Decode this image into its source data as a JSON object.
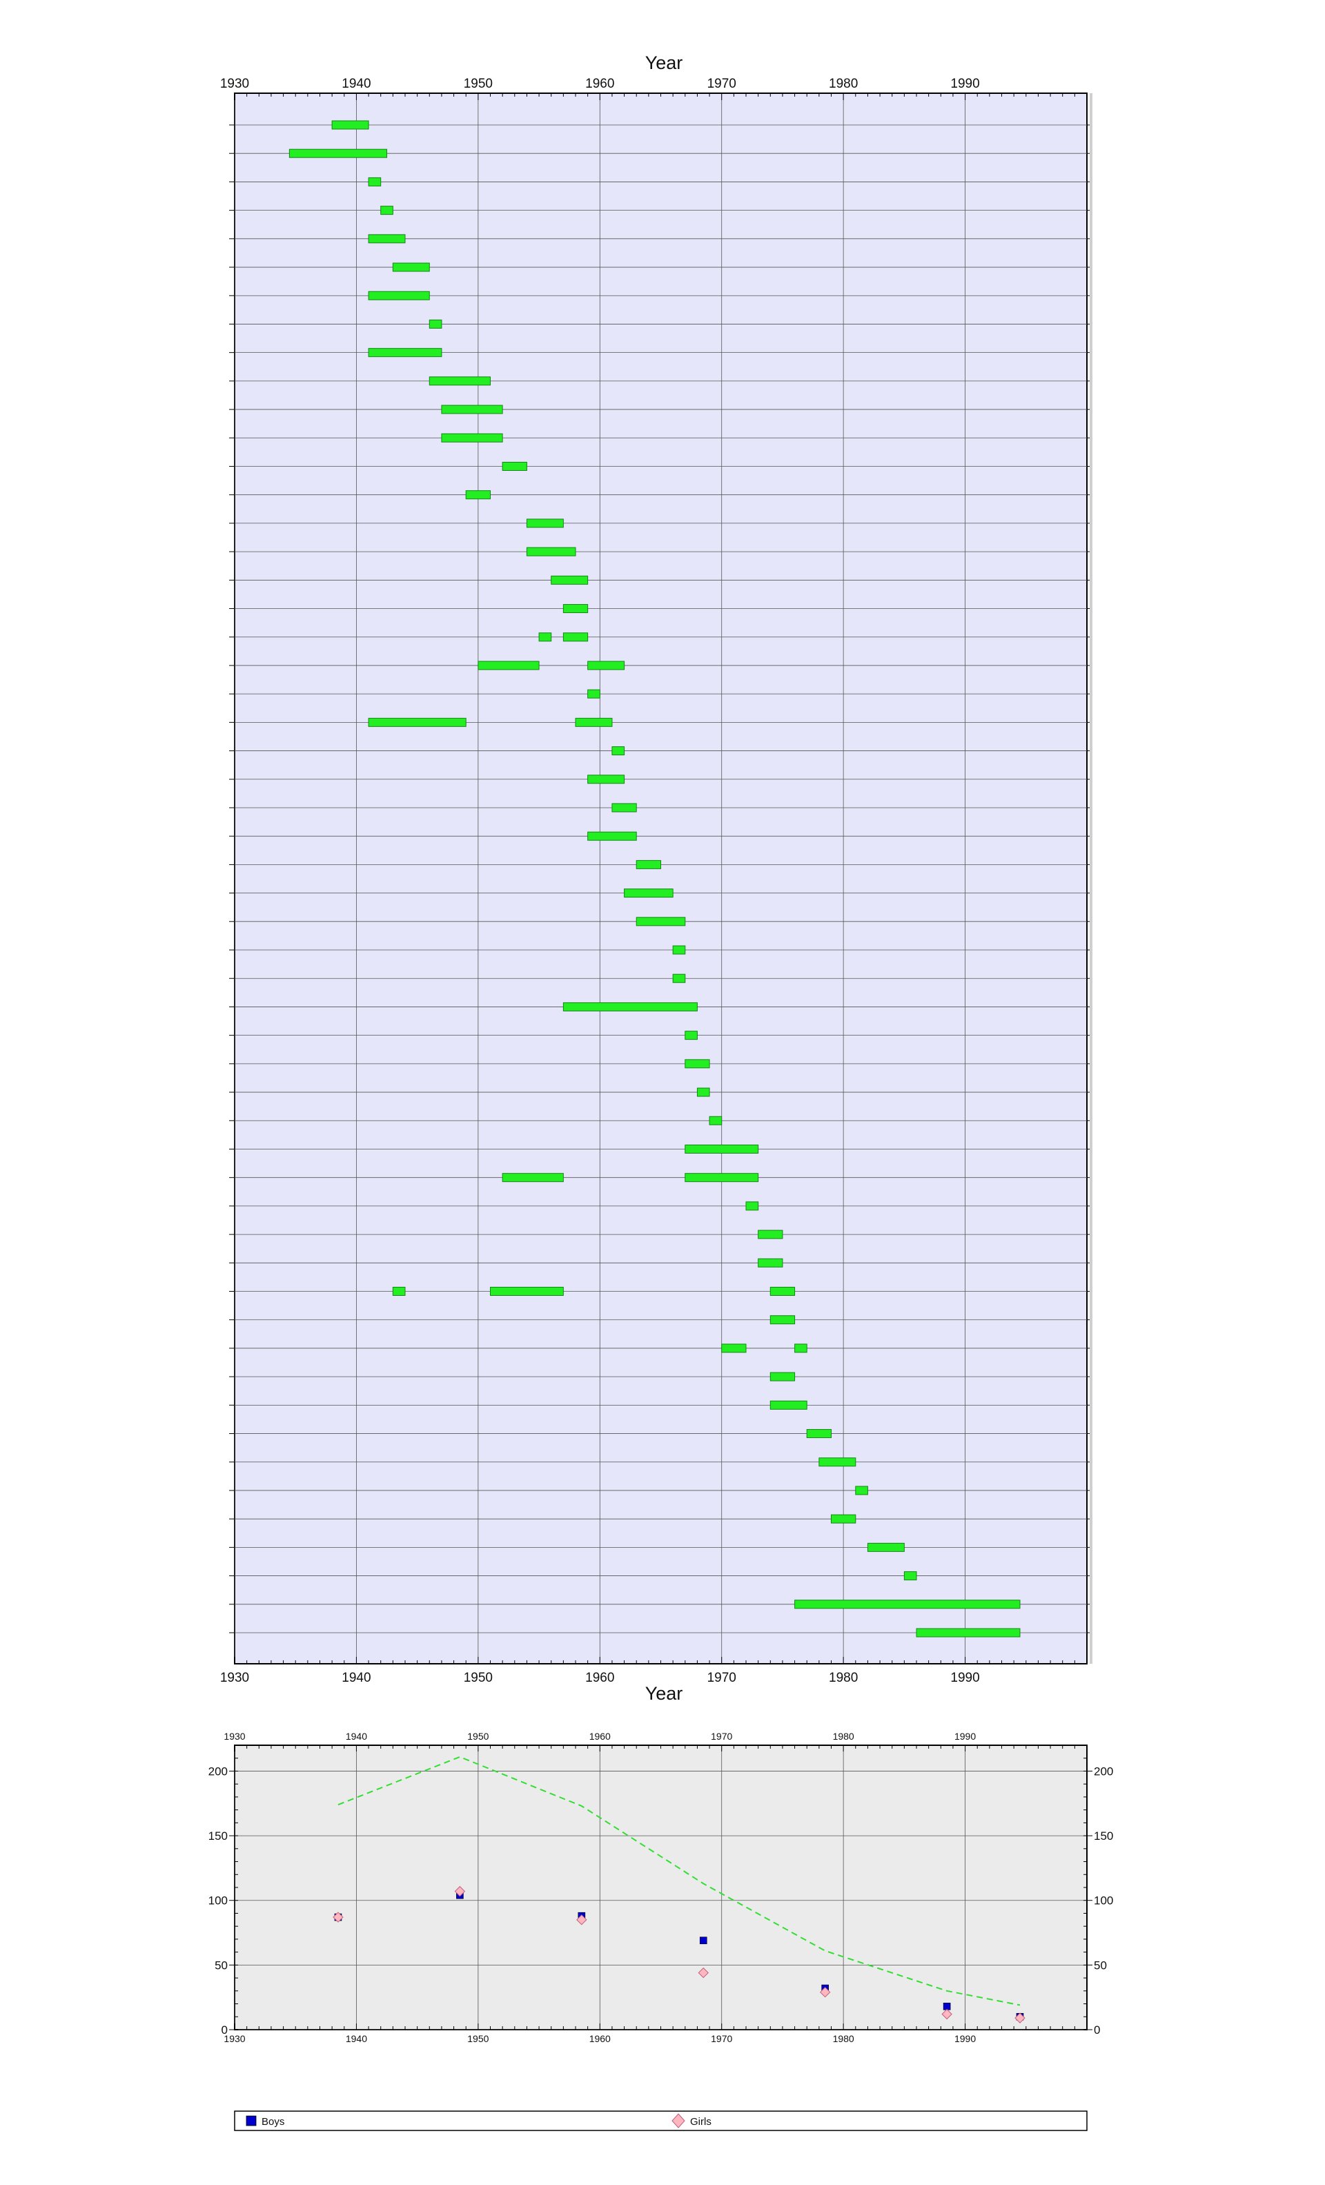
{
  "chart_data": [
    {
      "type": "gantt",
      "xlabel": "Year",
      "xlim": [
        1930,
        2000
      ],
      "xticks": [
        1930,
        1940,
        1950,
        1960,
        1970,
        1980,
        1990
      ],
      "background": "#e6e6fa",
      "bar_color": "#22ee22",
      "grid": true,
      "rows": [
        {
          "label": "",
          "spans": [
            [
              1938,
              1941
            ]
          ]
        },
        {
          "label": "",
          "spans": [
            [
              1934.5,
              1942.5
            ]
          ]
        },
        {
          "label": "",
          "spans": [
            [
              1941,
              1942
            ]
          ]
        },
        {
          "label": "",
          "spans": [
            [
              1942,
              1943
            ]
          ]
        },
        {
          "label": "",
          "spans": [
            [
              1941,
              1944
            ]
          ]
        },
        {
          "label": "",
          "spans": [
            [
              1943,
              1946
            ]
          ]
        },
        {
          "label": "",
          "spans": [
            [
              1941,
              1946
            ]
          ]
        },
        {
          "label": "",
          "spans": [
            [
              1946,
              1947
            ]
          ]
        },
        {
          "label": "",
          "spans": [
            [
              1941,
              1947
            ]
          ]
        },
        {
          "label": "",
          "spans": [
            [
              1946,
              1951
            ]
          ]
        },
        {
          "label": "",
          "spans": [
            [
              1947,
              1952
            ]
          ]
        },
        {
          "label": "",
          "spans": [
            [
              1947,
              1952
            ]
          ]
        },
        {
          "label": "",
          "spans": [
            [
              1952,
              1954
            ]
          ]
        },
        {
          "label": "",
          "spans": [
            [
              1949,
              1951
            ]
          ]
        },
        {
          "label": "",
          "spans": [
            [
              1954,
              1957
            ]
          ]
        },
        {
          "label": "",
          "spans": [
            [
              1954,
              1958
            ]
          ]
        },
        {
          "label": "",
          "spans": [
            [
              1956,
              1959
            ]
          ]
        },
        {
          "label": "",
          "spans": [
            [
              1957,
              1959
            ]
          ]
        },
        {
          "label": "",
          "spans": [
            [
              1955,
              1956
            ],
            [
              1957,
              1959
            ]
          ]
        },
        {
          "label": "",
          "spans": [
            [
              1950,
              1955
            ],
            [
              1959,
              1962
            ]
          ]
        },
        {
          "label": "",
          "spans": [
            [
              1959,
              1960
            ]
          ]
        },
        {
          "label": "",
          "spans": [
            [
              1941,
              1949
            ],
            [
              1958,
              1961
            ]
          ]
        },
        {
          "label": "",
          "spans": [
            [
              1961,
              1962
            ]
          ]
        },
        {
          "label": "",
          "spans": [
            [
              1959,
              1962
            ]
          ]
        },
        {
          "label": "",
          "spans": [
            [
              1961,
              1963
            ]
          ]
        },
        {
          "label": "",
          "spans": [
            [
              1959,
              1963
            ]
          ]
        },
        {
          "label": "",
          "spans": [
            [
              1963,
              1965
            ]
          ]
        },
        {
          "label": "",
          "spans": [
            [
              1962,
              1966
            ]
          ]
        },
        {
          "label": "",
          "spans": [
            [
              1963,
              1967
            ]
          ]
        },
        {
          "label": "",
          "spans": [
            [
              1966,
              1967
            ]
          ]
        },
        {
          "label": "",
          "spans": [
            [
              1966,
              1967
            ]
          ]
        },
        {
          "label": "",
          "spans": [
            [
              1957,
              1968
            ]
          ]
        },
        {
          "label": "",
          "spans": [
            [
              1967,
              1968
            ]
          ]
        },
        {
          "label": "",
          "spans": [
            [
              1967,
              1969
            ]
          ]
        },
        {
          "label": "",
          "spans": [
            [
              1968,
              1969
            ]
          ]
        },
        {
          "label": "",
          "spans": [
            [
              1969,
              1970
            ]
          ]
        },
        {
          "label": "",
          "spans": [
            [
              1967,
              1973
            ]
          ]
        },
        {
          "label": "",
          "spans": [
            [
              1952,
              1957
            ],
            [
              1967,
              1973
            ]
          ]
        },
        {
          "label": "",
          "spans": [
            [
              1972,
              1973
            ]
          ]
        },
        {
          "label": "",
          "spans": [
            [
              1973,
              1975
            ]
          ]
        },
        {
          "label": "",
          "spans": [
            [
              1973,
              1975
            ]
          ]
        },
        {
          "label": "",
          "spans": [
            [
              1943,
              1944
            ],
            [
              1951,
              1957
            ],
            [
              1974,
              1976
            ]
          ]
        },
        {
          "label": "",
          "spans": [
            [
              1974,
              1976
            ]
          ]
        },
        {
          "label": "",
          "spans": [
            [
              1970,
              1972
            ],
            [
              1976,
              1977
            ]
          ]
        },
        {
          "label": "",
          "spans": [
            [
              1974,
              1976
            ]
          ]
        },
        {
          "label": "",
          "spans": [
            [
              1974,
              1977
            ]
          ]
        },
        {
          "label": "",
          "spans": [
            [
              1977,
              1979
            ]
          ]
        },
        {
          "label": "",
          "spans": [
            [
              1978,
              1981
            ]
          ]
        },
        {
          "label": "",
          "spans": [
            [
              1981,
              1982
            ]
          ]
        },
        {
          "label": "",
          "spans": [
            [
              1979,
              1981
            ]
          ]
        },
        {
          "label": "",
          "spans": [
            [
              1982,
              1985
            ]
          ]
        },
        {
          "label": "",
          "spans": [
            [
              1985,
              1986
            ]
          ]
        },
        {
          "label": "",
          "spans": [
            [
              1976,
              1994.5
            ]
          ]
        },
        {
          "label": "",
          "spans": [
            [
              1986,
              1994.5
            ]
          ]
        }
      ]
    },
    {
      "type": "scatter",
      "xlabel": "Year",
      "ylabel": "",
      "xlim": [
        1930,
        2000
      ],
      "ylim": [
        0,
        220
      ],
      "xticks": [
        1930,
        1940,
        1950,
        1960,
        1970,
        1980,
        1990
      ],
      "yticks": [
        0,
        50,
        100,
        150,
        200
      ],
      "background": "#ebebeb",
      "grid": true,
      "legend": "bottom",
      "series": [
        {
          "name": "Boys",
          "marker": "square",
          "color": "#0000cc",
          "x": [
            1938.5,
            1948.5,
            1958.5,
            1968.5,
            1978.5,
            1988.5,
            1994.5
          ],
          "y": [
            87,
            104,
            88,
            69,
            32,
            18,
            10
          ]
        },
        {
          "name": "Girls",
          "marker": "diamond",
          "color": "#ffb6c1",
          "x": [
            1938.5,
            1948.5,
            1958.5,
            1968.5,
            1978.5,
            1988.5,
            1994.5
          ],
          "y": [
            87,
            107,
            85,
            44,
            29,
            12,
            9
          ]
        },
        {
          "name": "",
          "marker": "dashed-line",
          "color": "#33dd33",
          "x": [
            1938.5,
            1948.5,
            1958.5,
            1968.5,
            1978.5,
            1988.5,
            1994.5
          ],
          "y": [
            174,
            211,
            173,
            113,
            61,
            30,
            19
          ]
        }
      ]
    }
  ]
}
